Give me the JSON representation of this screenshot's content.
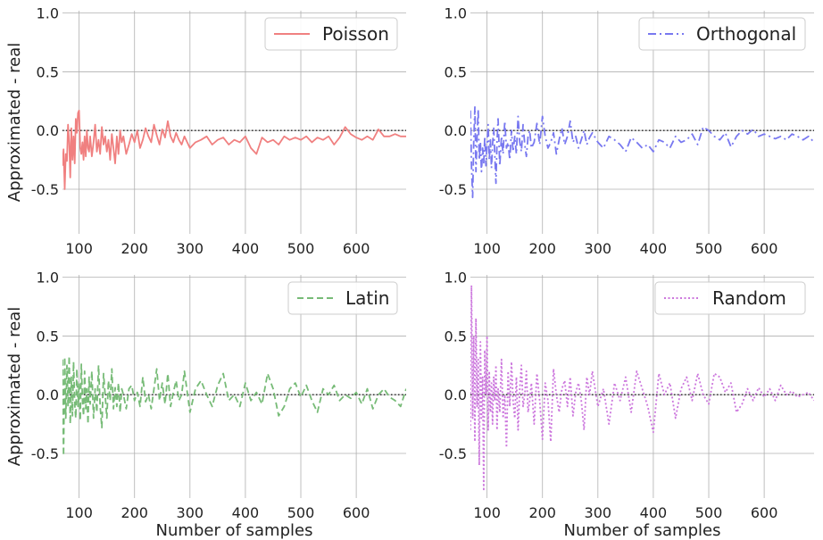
{
  "chart_data": [
    {
      "type": "line",
      "series": [
        {
          "name": "Poisson",
          "color": "#f08080",
          "dash": "solid"
        }
      ],
      "ylabel": "Approximated - real",
      "xlabel": "",
      "xlim": [
        70,
        690
      ],
      "ylim": [
        -0.88,
        1.02
      ],
      "xticks": [
        100,
        200,
        300,
        400,
        500,
        600
      ],
      "yticks": [
        -0.5,
        0.0,
        0.5,
        1.0
      ],
      "x": [
        70,
        72,
        74,
        76,
        78,
        80,
        82,
        84,
        86,
        88,
        90,
        92,
        94,
        96,
        98,
        100,
        102,
        104,
        106,
        108,
        110,
        112,
        114,
        116,
        118,
        120,
        123,
        126,
        129,
        132,
        135,
        138,
        141,
        144,
        147,
        150,
        153,
        156,
        159,
        162,
        165,
        168,
        171,
        174,
        177,
        180,
        185,
        190,
        195,
        200,
        205,
        210,
        215,
        220,
        225,
        230,
        235,
        240,
        245,
        250,
        255,
        260,
        265,
        270,
        275,
        280,
        285,
        290,
        300,
        310,
        320,
        330,
        340,
        350,
        360,
        370,
        380,
        390,
        400,
        410,
        420,
        430,
        440,
        450,
        460,
        470,
        480,
        490,
        500,
        510,
        520,
        530,
        540,
        550,
        560,
        570,
        580,
        590,
        600,
        610,
        620,
        630,
        640,
        650,
        660,
        670,
        680,
        690
      ],
      "y": [
        -0.3,
        -0.16,
        -0.5,
        -0.2,
        -0.26,
        0.05,
        -0.1,
        -0.4,
        0.02,
        -0.25,
        -0.05,
        -0.28,
        0.1,
        -0.02,
        0.15,
        0.17,
        -0.15,
        -0.2,
        -0.1,
        -0.25,
        -0.05,
        -0.22,
        0.0,
        -0.15,
        -0.18,
        -0.05,
        -0.22,
        -0.1,
        0.05,
        -0.18,
        -0.08,
        -0.2,
        0.03,
        -0.12,
        -0.05,
        -0.18,
        -0.08,
        -0.25,
        -0.03,
        -0.15,
        -0.28,
        -0.05,
        -0.2,
        0.0,
        -0.1,
        -0.05,
        -0.2,
        -0.12,
        -0.03,
        -0.1,
        0.0,
        -0.15,
        -0.08,
        0.02,
        -0.05,
        -0.1,
        0.05,
        -0.04,
        -0.12,
        0.01,
        -0.06,
        0.08,
        -0.05,
        -0.1,
        -0.02,
        -0.08,
        -0.12,
        -0.05,
        -0.15,
        -0.1,
        -0.08,
        -0.05,
        -0.12,
        -0.08,
        -0.06,
        -0.12,
        -0.08,
        -0.1,
        -0.05,
        -0.15,
        -0.2,
        -0.06,
        -0.1,
        -0.08,
        -0.12,
        -0.05,
        -0.08,
        -0.06,
        -0.08,
        -0.05,
        -0.1,
        -0.06,
        -0.08,
        -0.05,
        -0.12,
        -0.06,
        0.03,
        -0.03,
        -0.06,
        -0.08,
        -0.05,
        -0.08,
        0.01,
        -0.05,
        -0.05,
        -0.03,
        -0.05,
        -0.05
      ]
    },
    {
      "type": "line",
      "series": [
        {
          "name": "Orthogonal",
          "color": "#7878f0",
          "dash": "dashdot"
        }
      ],
      "ylabel": "",
      "xlabel": "",
      "xlim": [
        70,
        690
      ],
      "ylim": [
        -0.88,
        1.02
      ],
      "xticks": [
        100,
        200,
        300,
        400,
        500,
        600
      ],
      "yticks": [
        -0.5,
        0.0,
        0.5,
        1.0
      ],
      "x": [
        70,
        72,
        74,
        76,
        78,
        80,
        82,
        84,
        86,
        88,
        90,
        92,
        94,
        96,
        98,
        100,
        102,
        104,
        106,
        108,
        110,
        112,
        114,
        116,
        118,
        120,
        123,
        126,
        129,
        132,
        135,
        138,
        141,
        144,
        147,
        150,
        153,
        156,
        159,
        162,
        165,
        168,
        171,
        174,
        177,
        180,
        185,
        190,
        195,
        200,
        205,
        210,
        215,
        220,
        225,
        230,
        235,
        240,
        245,
        250,
        255,
        260,
        265,
        270,
        275,
        280,
        285,
        290,
        300,
        310,
        320,
        330,
        340,
        350,
        360,
        370,
        380,
        390,
        400,
        410,
        420,
        430,
        440,
        450,
        460,
        470,
        480,
        490,
        500,
        510,
        520,
        530,
        540,
        550,
        560,
        570,
        580,
        590,
        600,
        610,
        620,
        630,
        640,
        650,
        660,
        670,
        680,
        690
      ],
      "y": [
        0.17,
        -0.3,
        -0.57,
        -0.1,
        0.2,
        -0.35,
        -0.05,
        0.18,
        -0.25,
        -0.1,
        -0.35,
        -0.15,
        -0.28,
        -0.05,
        -0.3,
        -0.12,
        0.05,
        -0.25,
        -0.08,
        -0.32,
        -0.12,
        0.02,
        -0.2,
        -0.45,
        -0.1,
        0.1,
        -0.3,
        -0.05,
        -0.2,
        0.08,
        -0.15,
        -0.1,
        -0.25,
        0.0,
        -0.18,
        -0.05,
        -0.2,
        0.12,
        -0.1,
        -0.18,
        0.05,
        -0.12,
        -0.22,
        -0.05,
        0.0,
        -0.15,
        -0.1,
        0.06,
        -0.12,
        0.12,
        -0.05,
        -0.15,
        -0.1,
        -0.02,
        -0.2,
        -0.08,
        0.02,
        -0.12,
        -0.05,
        0.08,
        -0.1,
        -0.05,
        -0.15,
        -0.08,
        0.0,
        -0.12,
        -0.06,
        -0.02,
        -0.1,
        -0.15,
        -0.05,
        -0.08,
        -0.12,
        -0.18,
        -0.06,
        -0.1,
        -0.15,
        -0.12,
        -0.18,
        -0.08,
        -0.1,
        -0.15,
        -0.05,
        -0.1,
        -0.08,
        -0.03,
        -0.12,
        0.03,
        0.0,
        -0.05,
        -0.08,
        -0.02,
        -0.14,
        -0.05,
        0.0,
        -0.03,
        0.01,
        -0.05,
        -0.03,
        -0.05,
        -0.07,
        -0.05,
        -0.08,
        -0.03,
        -0.05,
        -0.08,
        -0.05,
        -0.1
      ]
    },
    {
      "type": "line",
      "series": [
        {
          "name": "Latin",
          "color": "#77bb77",
          "dash": "dashed"
        }
      ],
      "ylabel": "Approximated - real",
      "xlabel": "Number of samples",
      "xlim": [
        70,
        690
      ],
      "ylim": [
        -0.88,
        1.02
      ],
      "xticks": [
        100,
        200,
        300,
        400,
        500,
        600
      ],
      "yticks": [
        -0.5,
        0.0,
        0.5,
        1.0
      ],
      "x": [
        70,
        72,
        74,
        76,
        78,
        80,
        82,
        84,
        86,
        88,
        90,
        92,
        94,
        96,
        98,
        100,
        102,
        104,
        106,
        108,
        110,
        112,
        114,
        116,
        118,
        120,
        123,
        126,
        129,
        132,
        135,
        138,
        141,
        144,
        147,
        150,
        153,
        156,
        159,
        162,
        165,
        168,
        171,
        174,
        177,
        180,
        185,
        190,
        195,
        200,
        205,
        210,
        215,
        220,
        225,
        230,
        235,
        240,
        245,
        250,
        255,
        260,
        265,
        270,
        275,
        280,
        285,
        290,
        300,
        310,
        320,
        330,
        340,
        350,
        360,
        370,
        380,
        390,
        400,
        410,
        420,
        430,
        440,
        450,
        460,
        470,
        480,
        490,
        500,
        510,
        520,
        530,
        540,
        550,
        560,
        570,
        580,
        590,
        600,
        610,
        620,
        630,
        640,
        650,
        660,
        670,
        680,
        690
      ],
      "y": [
        0.3,
        -0.52,
        0.32,
        -0.2,
        0.25,
        -0.1,
        0.33,
        -0.25,
        0.15,
        -0.18,
        0.28,
        -0.08,
        -0.2,
        0.22,
        -0.1,
        0.1,
        -0.22,
        0.26,
        -0.05,
        -0.18,
        0.2,
        -0.12,
        0.05,
        -0.25,
        0.15,
        -0.08,
        0.2,
        -0.2,
        0.05,
        -0.15,
        0.25,
        -0.1,
        -0.28,
        0.18,
        0.0,
        -0.2,
        0.12,
        -0.05,
        0.22,
        -0.12,
        0.06,
        -0.1,
        0.1,
        -0.15,
        0.05,
        0.0,
        -0.12,
        0.05,
        0.08,
        -0.05,
        0.02,
        -0.1,
        0.15,
        -0.06,
        0.0,
        -0.12,
        0.05,
        0.22,
        -0.05,
        0.1,
        -0.08,
        0.18,
        -0.1,
        0.02,
        0.12,
        -0.05,
        0.0,
        0.2,
        -0.15,
        0.05,
        0.12,
        0.0,
        -0.1,
        0.08,
        0.18,
        -0.05,
        0.0,
        -0.1,
        0.1,
        -0.05,
        0.02,
        -0.08,
        0.18,
        0.05,
        -0.18,
        -0.1,
        0.05,
        0.1,
        -0.02,
        0.08,
        -0.05,
        -0.15,
        0.05,
        0.0,
        0.08,
        -0.05,
        0.0,
        -0.03,
        0.02,
        -0.08,
        0.05,
        -0.12,
        0.0,
        0.05,
        -0.02,
        -0.05,
        -0.1,
        0.05
      ]
    },
    {
      "type": "line",
      "series": [
        {
          "name": "Random",
          "color": "#cc77dd",
          "dash": "dotted"
        }
      ],
      "ylabel": "",
      "xlabel": "Number of samples",
      "xlim": [
        70,
        690
      ],
      "ylim": [
        -0.88,
        1.02
      ],
      "xticks": [
        100,
        200,
        300,
        400,
        500,
        600
      ],
      "yticks": [
        -0.5,
        0.0,
        0.5,
        1.0
      ],
      "x": [
        70,
        72,
        74,
        76,
        78,
        80,
        82,
        84,
        86,
        88,
        90,
        92,
        94,
        96,
        98,
        100,
        102,
        104,
        106,
        108,
        110,
        112,
        114,
        116,
        118,
        120,
        123,
        126,
        129,
        132,
        135,
        138,
        141,
        144,
        147,
        150,
        153,
        156,
        159,
        162,
        165,
        168,
        171,
        174,
        177,
        180,
        185,
        190,
        195,
        200,
        205,
        210,
        215,
        220,
        225,
        230,
        235,
        240,
        245,
        250,
        255,
        260,
        265,
        270,
        275,
        280,
        285,
        290,
        300,
        310,
        320,
        330,
        340,
        350,
        360,
        370,
        380,
        390,
        400,
        410,
        420,
        430,
        440,
        450,
        460,
        470,
        480,
        490,
        500,
        510,
        520,
        530,
        540,
        550,
        560,
        570,
        580,
        590,
        600,
        610,
        620,
        630,
        640,
        650,
        660,
        670,
        680,
        690
      ],
      "y": [
        -0.3,
        0.93,
        -0.2,
        0.5,
        -0.4,
        0.65,
        -0.1,
        0.3,
        -0.6,
        0.45,
        -0.2,
        0.15,
        -0.82,
        0.38,
        0.0,
        0.5,
        -0.3,
        0.2,
        -0.15,
        0.1,
        -0.25,
        0.15,
        -0.05,
        0.25,
        -0.3,
        0.05,
        -0.15,
        0.3,
        -0.2,
        0.0,
        -0.45,
        0.2,
        -0.1,
        0.28,
        -0.05,
        -0.2,
        0.15,
        -0.3,
        0.05,
        0.25,
        -0.1,
        0.0,
        0.2,
        -0.15,
        -0.05,
        0.1,
        -0.25,
        0.18,
        -0.05,
        -0.38,
        0.1,
        -0.05,
        -0.4,
        0.22,
        0.0,
        -0.15,
        0.05,
        0.12,
        -0.1,
        0.15,
        -0.18,
        0.02,
        0.1,
        -0.05,
        -0.3,
        0.15,
        0.0,
        0.2,
        -0.1,
        0.05,
        -0.25,
        0.1,
        -0.05,
        0.15,
        -0.15,
        0.2,
        0.05,
        -0.1,
        -0.32,
        0.18,
        0.0,
        0.1,
        -0.2,
        0.05,
        0.15,
        -0.05,
        0.18,
        0.0,
        -0.08,
        0.18,
        0.15,
        0.02,
        0.1,
        -0.15,
        -0.08,
        0.05,
        -0.05,
        0.06,
        -0.02,
        0.05,
        -0.05,
        0.08,
        0.0,
        0.03,
        -0.02,
        0.0,
        0.02,
        -0.05
      ]
    }
  ]
}
